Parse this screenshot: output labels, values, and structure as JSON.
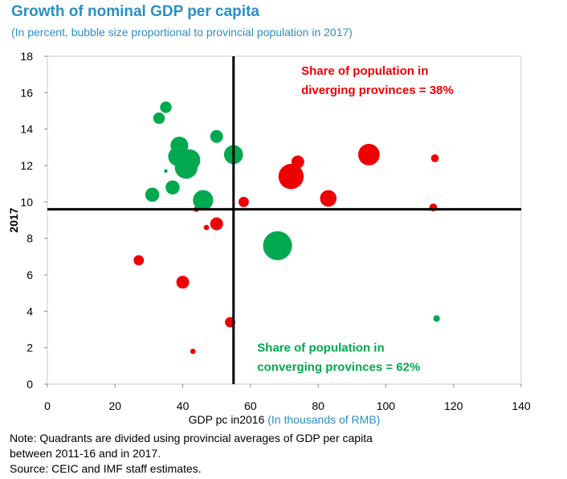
{
  "title": "Growth of nominal GDP per capita",
  "subtitle": "(In percent, bubble size proportional to provincial population in 2017)",
  "notes": [
    "Note: Quadrants are divided using provincial averages of GDP per capita",
    "between 2011-16 and in 2017.",
    "Source: CEIC and IMF staff estimates."
  ],
  "colors": {
    "diverging": "#ee0000",
    "converging": "#00a84f",
    "title": "#2a8fc4",
    "axis_blue": "#2a8fc4"
  },
  "chart_data": {
    "type": "scatter",
    "title": "Growth of nominal GDP per capita",
    "subtitle": "(In percent, bubble size proportional to provincial population in 2017)",
    "xlabel": "GDP pc in2016",
    "xlabel_unit": "(In thousands of RMB)",
    "ylabel": "2017",
    "xlim": [
      0,
      140
    ],
    "ylim": [
      0,
      18
    ],
    "xticks": [
      0,
      20,
      40,
      60,
      80,
      100,
      120,
      140
    ],
    "yticks": [
      0,
      2,
      4,
      6,
      8,
      10,
      12,
      14,
      16,
      18
    ],
    "divider_x": 55,
    "divider_y": 9.6,
    "annotations": [
      {
        "lines": [
          "Share of population in",
          "diverging provinces = 38%"
        ],
        "color": "red",
        "x": 75,
        "y": 17.2
      },
      {
        "lines": [
          "Share of population in",
          "converging provinces = 62%"
        ],
        "color": "green",
        "x": 62,
        "y": 2.0
      }
    ],
    "series": [
      {
        "name": "Diverging",
        "color": "#ee0000",
        "points": [
          {
            "x": 27,
            "y": 6.8,
            "size": 3.5
          },
          {
            "x": 40,
            "y": 5.6,
            "size": 4.5
          },
          {
            "x": 43,
            "y": 1.8,
            "size": 1.5
          },
          {
            "x": 44,
            "y": 9.6,
            "size": 1.5
          },
          {
            "x": 47,
            "y": 8.6,
            "size": 1.5
          },
          {
            "x": 50,
            "y": 8.8,
            "size": 4.5
          },
          {
            "x": 54,
            "y": 3.4,
            "size": 3.5
          },
          {
            "x": 58,
            "y": 10.0,
            "size": 3.5
          },
          {
            "x": 72,
            "y": 11.4,
            "size": 9.5
          },
          {
            "x": 74,
            "y": 12.2,
            "size": 4.5
          },
          {
            "x": 83,
            "y": 10.2,
            "size": 6.0
          },
          {
            "x": 95,
            "y": 12.6,
            "size": 8.0
          },
          {
            "x": 114,
            "y": 9.7,
            "size": 2.5
          },
          {
            "x": 114.5,
            "y": 12.4,
            "size": 2.5
          }
        ]
      },
      {
        "name": "Converging",
        "color": "#00a84f",
        "points": [
          {
            "x": 31,
            "y": 10.4,
            "size": 5.0
          },
          {
            "x": 33,
            "y": 14.6,
            "size": 4.0
          },
          {
            "x": 35,
            "y": 15.2,
            "size": 4.0
          },
          {
            "x": 35,
            "y": 11.7,
            "size": 0.8
          },
          {
            "x": 37,
            "y": 10.8,
            "size": 5.0
          },
          {
            "x": 38.5,
            "y": 12.5,
            "size": 7.0
          },
          {
            "x": 39,
            "y": 13.1,
            "size": 6.5
          },
          {
            "x": 41,
            "y": 11.9,
            "size": 8.5
          },
          {
            "x": 42,
            "y": 12.3,
            "size": 8.0
          },
          {
            "x": 46,
            "y": 10.1,
            "size": 7.5
          },
          {
            "x": 50,
            "y": 13.6,
            "size": 4.5
          },
          {
            "x": 55,
            "y": 12.6,
            "size": 7.0
          },
          {
            "x": 68,
            "y": 7.6,
            "size": 11.0
          },
          {
            "x": 115,
            "y": 3.6,
            "size": 2.0
          }
        ]
      }
    ]
  }
}
